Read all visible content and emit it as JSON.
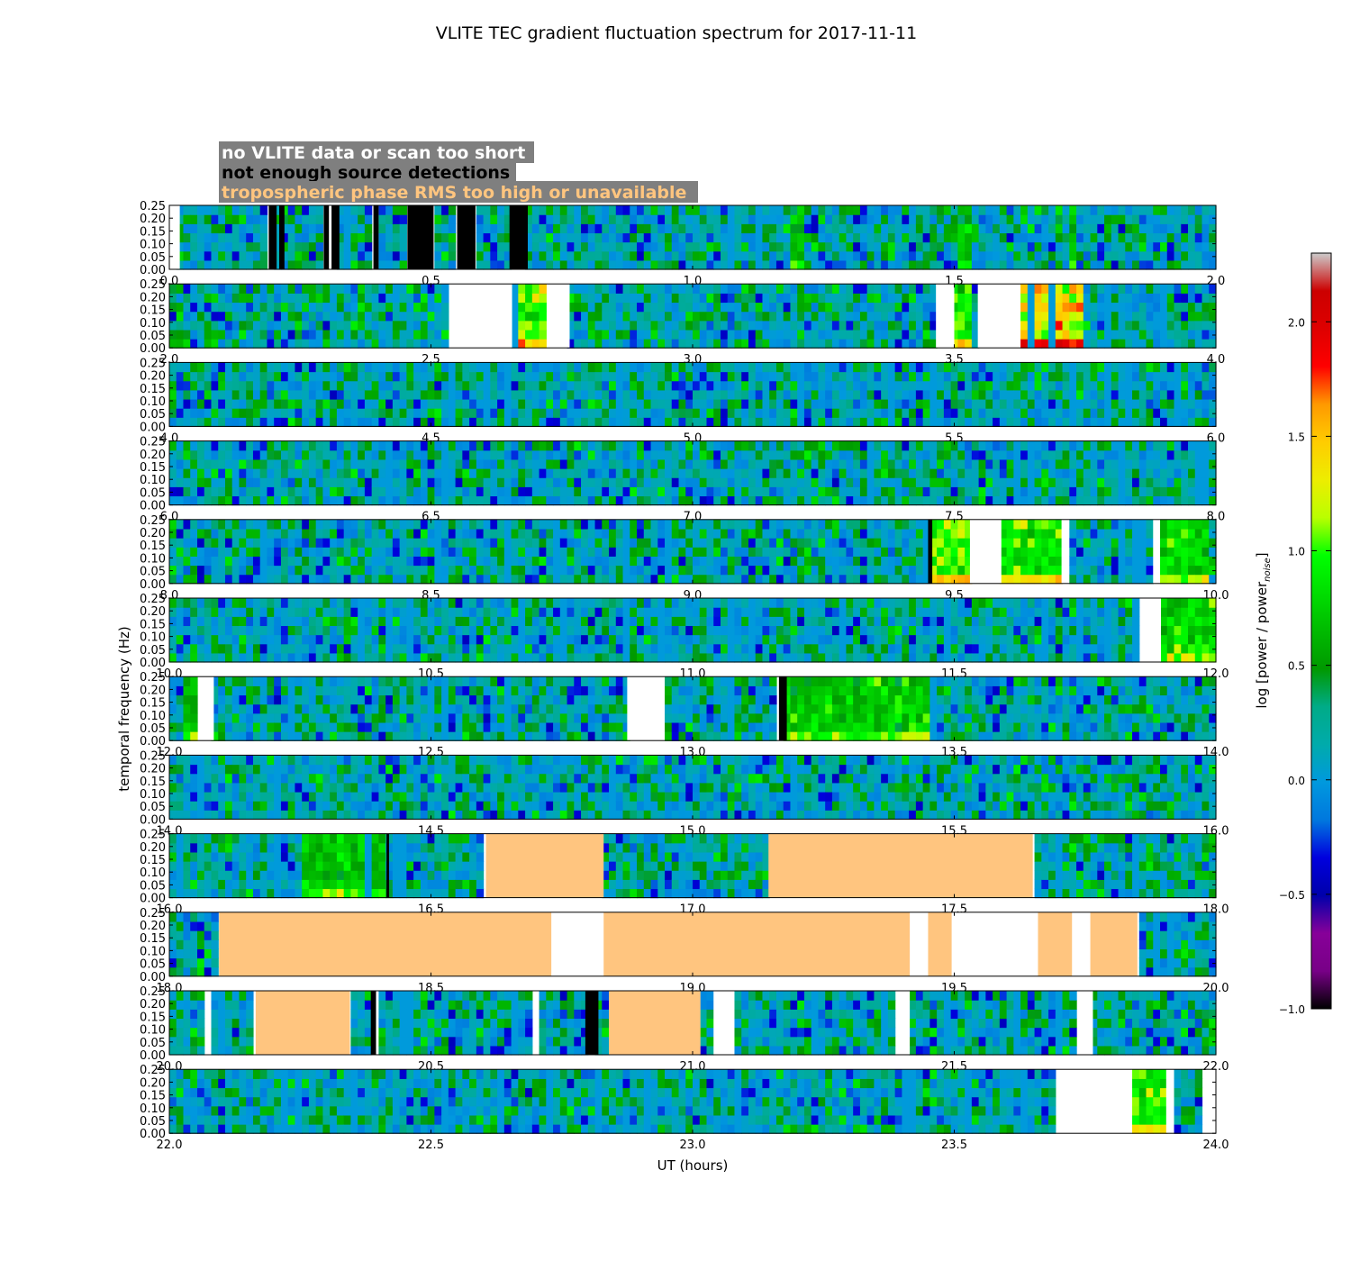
{
  "chart_data": {
    "type": "heatmap",
    "title": "VLITE TEC gradient fluctuation spectrum for 2017-11-11",
    "xlabel": "UT (hours)",
    "ylabel": "temporal frequency (Hz)",
    "ylim": [
      0.0,
      0.25
    ],
    "yticks": [
      "0.00",
      "0.05",
      "0.10",
      "0.15",
      "0.20",
      "0.25"
    ],
    "colorbar": {
      "label": "log [power / power",
      "label_sub": "noise",
      "label_end": "]",
      "range": [
        -1.0,
        2.3
      ],
      "ticks": [
        "−1.0",
        "−0.5",
        "0.0",
        "0.5",
        "1.0",
        "1.5",
        "2.0"
      ],
      "colormap": "nipy_spectral"
    },
    "legend": [
      {
        "text": "no VLITE data or scan too short",
        "color": "#ffffff"
      },
      {
        "text": "not enough source detections",
        "color": "#000000"
      },
      {
        "text": "tropospheric phase RMS too high or unavailable",
        "color": "#ffc57f"
      }
    ],
    "legend_placement": "top-left",
    "flag_colors": {
      "no_data": "#ffffff",
      "few_detections": "#000000",
      "trop_rms": "#ffc57f"
    },
    "panels": [
      {
        "xlim": [
          0.0,
          2.0
        ],
        "xticks": [
          "0.0",
          "0.5",
          "1.0",
          "1.5",
          "2.0"
        ],
        "no_data": [
          [
            0.0,
            0.02
          ]
        ],
        "few_detections": [
          [
            0.19,
            0.205
          ],
          [
            0.21,
            0.22
          ],
          [
            0.295,
            0.305
          ],
          [
            0.31,
            0.325
          ],
          [
            0.39,
            0.4
          ],
          [
            0.455,
            0.505
          ],
          [
            0.55,
            0.585
          ],
          [
            0.65,
            0.685
          ]
        ],
        "trop_rms": [],
        "hot": [
          [
            1.19,
            1.21,
            0.8
          ],
          [
            1.51,
            1.53,
            0.85
          ],
          [
            1.72,
            1.74,
            0.8
          ]
        ]
      },
      {
        "xlim": [
          2.0,
          4.0
        ],
        "xticks": [
          "2.0",
          "2.5",
          "3.0",
          "3.5",
          "4.0"
        ],
        "no_data": [
          [
            2.535,
            2.655
          ],
          [
            2.725,
            2.765
          ],
          [
            3.465,
            3.5
          ],
          [
            3.545,
            3.625
          ]
        ],
        "few_detections": [],
        "trop_rms": [],
        "hot": [
          [
            2.655,
            2.725,
            1.3
          ],
          [
            3.5,
            3.535,
            1.2
          ],
          [
            3.625,
            3.745,
            1.7
          ]
        ]
      },
      {
        "xlim": [
          4.0,
          6.0
        ],
        "xticks": [
          "4.0",
          "4.5",
          "5.0",
          "5.5",
          "6.0"
        ],
        "no_data": [],
        "few_detections": [],
        "trop_rms": [],
        "hot": []
      },
      {
        "xlim": [
          6.0,
          8.0
        ],
        "xticks": [
          "6.0",
          "6.5",
          "7.0",
          "7.5",
          "8.0"
        ],
        "no_data": [],
        "few_detections": [],
        "trop_rms": [],
        "hot": []
      },
      {
        "xlim": [
          8.0,
          10.0
        ],
        "xticks": [
          "8.0",
          "8.5",
          "9.0",
          "9.5",
          "10.0"
        ],
        "no_data": [
          [
            9.53,
            9.59
          ],
          [
            9.705,
            9.715
          ],
          [
            9.88,
            9.89
          ]
        ],
        "few_detections": [
          [
            9.45,
            9.458
          ]
        ],
        "trop_rms": [],
        "hot": [
          [
            9.458,
            9.53,
            1.3
          ],
          [
            9.59,
            9.705,
            1.2
          ],
          [
            9.89,
            9.99,
            1.0
          ]
        ]
      },
      {
        "xlim": [
          10.0,
          12.0
        ],
        "xticks": [
          "10.0",
          "10.5",
          "11.0",
          "11.5",
          "12.0"
        ],
        "no_data": [
          [
            11.86,
            11.895
          ]
        ],
        "few_detections": [],
        "trop_rms": [],
        "hot": [
          [
            11.895,
            11.995,
            1.0
          ]
        ]
      },
      {
        "xlim": [
          12.0,
          14.0
        ],
        "xticks": [
          "12.0",
          "12.5",
          "13.0",
          "13.5",
          "14.0"
        ],
        "no_data": [
          [
            12.06,
            12.085
          ],
          [
            12.875,
            12.945
          ]
        ],
        "few_detections": [
          [
            13.165,
            13.18
          ]
        ],
        "trop_rms": [],
        "hot": [
          [
            12.025,
            12.055,
            0.9
          ],
          [
            13.18,
            13.465,
            0.9
          ]
        ]
      },
      {
        "xlim": [
          14.0,
          16.0
        ],
        "xticks": [
          "14.0",
          "14.5",
          "15.0",
          "15.5",
          "16.0"
        ],
        "no_data": [],
        "few_detections": [],
        "trop_rms": [],
        "hot": []
      },
      {
        "xlim": [
          16.0,
          18.0
        ],
        "xticks": [
          "16.0",
          "16.5",
          "17.0",
          "17.5",
          "18.0"
        ],
        "no_data": [],
        "few_detections": [
          [
            16.415,
            16.42
          ]
        ],
        "trop_rms": [
          [
            16.605,
            16.83
          ],
          [
            17.145,
            17.65
          ]
        ],
        "hot": [
          [
            16.255,
            16.415,
            0.9
          ]
        ]
      },
      {
        "xlim": [
          18.0,
          20.0
        ],
        "xticks": [
          "18.0",
          "18.5",
          "19.0",
          "19.5",
          "20.0"
        ],
        "no_data": [
          [
            18.73,
            18.83
          ],
          [
            19.415,
            19.45
          ],
          [
            19.495,
            19.66
          ],
          [
            19.725,
            19.76
          ]
        ],
        "few_detections": [],
        "trop_rms": [
          [
            18.095,
            18.73
          ],
          [
            18.83,
            19.415
          ],
          [
            19.45,
            19.495
          ],
          [
            19.66,
            19.725
          ],
          [
            19.76,
            19.85
          ]
        ],
        "hot": []
      },
      {
        "xlim": [
          20.0,
          22.0
        ],
        "xticks": [
          "20.0",
          "20.5",
          "21.0",
          "21.5",
          "22.0"
        ],
        "no_data": [
          [
            20.07,
            20.08
          ],
          [
            20.7,
            20.705
          ],
          [
            21.04,
            21.075
          ],
          [
            21.39,
            21.415
          ],
          [
            21.74,
            21.765
          ]
        ],
        "few_detections": [
          [
            20.385,
            20.395
          ],
          [
            20.795,
            20.82
          ]
        ],
        "trop_rms": [
          [
            20.165,
            20.345
          ],
          [
            20.84,
            21.015
          ]
        ],
        "hot": []
      },
      {
        "xlim": [
          22.0,
          24.0
        ],
        "xticks": [
          "22.0",
          "22.5",
          "23.0",
          "23.5",
          "24.0"
        ],
        "no_data": [
          [
            23.7,
            23.835
          ],
          [
            23.905,
            23.92
          ],
          [
            23.98,
            24.0
          ]
        ],
        "few_detections": [],
        "trop_rms": [],
        "hot": [
          [
            23.835,
            23.905,
            1.2
          ]
        ]
      }
    ]
  }
}
